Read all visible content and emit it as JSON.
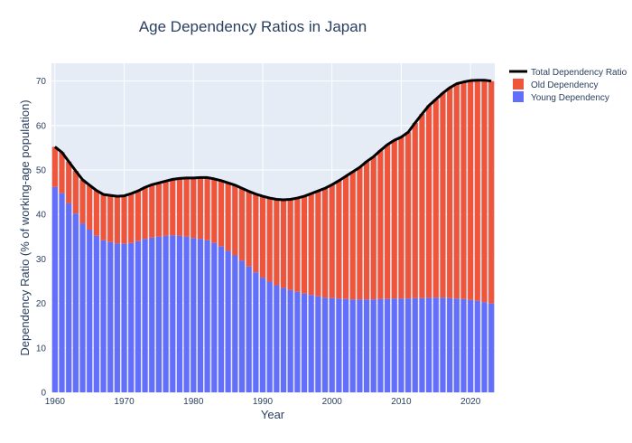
{
  "chart_data": {
    "type": "bar",
    "title": "Age Dependency Ratios in Japan",
    "xlabel": "Year",
    "ylabel": "Dependency Ratio (% of working-age population)",
    "xlim": [
      1959.5,
      2023.5
    ],
    "ylim": [
      0,
      74
    ],
    "x_ticks": [
      1960,
      1970,
      1980,
      1990,
      2000,
      2010,
      2020
    ],
    "y_ticks": [
      0,
      10,
      20,
      30,
      40,
      50,
      60,
      70
    ],
    "barmode": "stack",
    "grid": true,
    "legend_position": "top-right",
    "colors": {
      "background": "#e5ecf6",
      "young": "#636efa",
      "old": "#ef553b",
      "total": "#000000",
      "text": "#2a3f5f"
    },
    "x": [
      1960,
      1961,
      1962,
      1963,
      1964,
      1965,
      1966,
      1967,
      1968,
      1969,
      1970,
      1971,
      1972,
      1973,
      1974,
      1975,
      1976,
      1977,
      1978,
      1979,
      1980,
      1981,
      1982,
      1983,
      1984,
      1985,
      1986,
      1987,
      1988,
      1989,
      1990,
      1991,
      1992,
      1993,
      1994,
      1995,
      1996,
      1997,
      1998,
      1999,
      2000,
      2001,
      2002,
      2003,
      2004,
      2005,
      2006,
      2007,
      2008,
      2009,
      2010,
      2011,
      2012,
      2013,
      2014,
      2015,
      2016,
      2017,
      2018,
      2019,
      2020,
      2021,
      2022,
      2023
    ],
    "series": [
      {
        "name": "Young Dependency",
        "kind": "bar",
        "values": [
          46.2,
          44.8,
          42.5,
          40.2,
          38.0,
          36.6,
          35.2,
          34.2,
          33.8,
          33.5,
          33.4,
          33.6,
          34.0,
          34.5,
          34.8,
          35.0,
          35.2,
          35.3,
          35.2,
          35.0,
          34.7,
          34.5,
          34.2,
          33.6,
          32.8,
          31.8,
          30.8,
          29.6,
          28.3,
          27.0,
          25.8,
          24.9,
          24.1,
          23.5,
          23.0,
          22.6,
          22.2,
          21.9,
          21.6,
          21.3,
          21.2,
          21.1,
          21.0,
          20.9,
          20.9,
          20.9,
          20.9,
          21.0,
          21.0,
          21.1,
          21.1,
          21.1,
          21.2,
          21.2,
          21.3,
          21.3,
          21.3,
          21.2,
          21.1,
          21.0,
          20.8,
          20.6,
          20.3,
          20.0
        ]
      },
      {
        "name": "Old Dependency",
        "kind": "bar",
        "values": [
          9.0,
          9.2,
          9.4,
          9.6,
          9.8,
          10.0,
          10.2,
          10.3,
          10.5,
          10.6,
          10.8,
          11.1,
          11.3,
          11.6,
          11.9,
          12.1,
          12.3,
          12.6,
          12.9,
          13.2,
          13.5,
          13.8,
          14.1,
          14.4,
          14.8,
          15.3,
          15.8,
          16.3,
          16.9,
          17.6,
          18.3,
          18.8,
          19.3,
          19.8,
          20.4,
          21.1,
          21.9,
          22.8,
          23.7,
          24.6,
          25.5,
          26.5,
          27.6,
          28.7,
          29.7,
          31.0,
          32.1,
          33.4,
          34.7,
          35.6,
          36.3,
          37.4,
          39.4,
          41.4,
          43.2,
          44.6,
          46.0,
          47.3,
          48.3,
          48.8,
          49.3,
          49.6,
          49.9,
          50.0
        ]
      },
      {
        "name": "Total Dependency Ratio",
        "kind": "line",
        "values": [
          55.2,
          54.0,
          51.9,
          49.8,
          47.8,
          46.6,
          45.4,
          44.5,
          44.3,
          44.1,
          44.2,
          44.7,
          45.3,
          46.1,
          46.7,
          47.1,
          47.5,
          47.9,
          48.1,
          48.2,
          48.2,
          48.3,
          48.3,
          48.0,
          47.6,
          47.1,
          46.6,
          45.9,
          45.2,
          44.6,
          44.1,
          43.7,
          43.4,
          43.3,
          43.4,
          43.7,
          44.1,
          44.7,
          45.3,
          45.9,
          46.7,
          47.6,
          48.6,
          49.6,
          50.6,
          51.9,
          53.0,
          54.4,
          55.7,
          56.7,
          57.4,
          58.5,
          60.6,
          62.6,
          64.5,
          65.9,
          67.3,
          68.5,
          69.4,
          69.8,
          70.1,
          70.2,
          70.2,
          70.0
        ]
      }
    ],
    "legend": [
      "Total Dependency Ratio",
      "Old Dependency",
      "Young Dependency"
    ]
  }
}
